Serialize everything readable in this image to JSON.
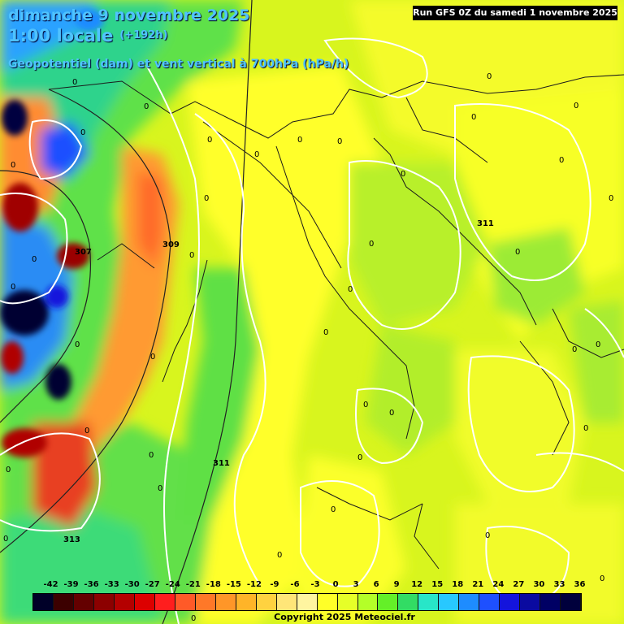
{
  "header": {
    "date_line": "dimanche 9 novembre 2025",
    "time_line": "1:00 locale",
    "lead_time": "(+192h)",
    "field_line": "Geopotentiel (dam) et vent vertical à 700hPa (hPa/h)"
  },
  "run_info": "Run GFS 0Z du samedi 1 novembre 2025",
  "copyright": "Copyright 2025 Meteociel.fr",
  "legend": {
    "ticks": [
      "-42",
      "-39",
      "-36",
      "-33",
      "-30",
      "-27",
      "-24",
      "-21",
      "-18",
      "-15",
      "-12",
      "-9",
      "-6",
      "-3",
      "0",
      "3",
      "6",
      "9",
      "12",
      "15",
      "18",
      "21",
      "24",
      "27",
      "30",
      "33",
      "36"
    ],
    "colors": [
      "#000028",
      "#3c0000",
      "#640000",
      "#8c0000",
      "#b40000",
      "#dc0000",
      "#ff1e1e",
      "#ff5a28",
      "#ff7828",
      "#ff9628",
      "#ffb428",
      "#ffd240",
      "#ffe678",
      "#fff5a0",
      "#ffff28",
      "#e6ff28",
      "#b4ff28",
      "#64f028",
      "#32dc64",
      "#28e6c8",
      "#28c8ff",
      "#1e8cff",
      "#1e50ff",
      "#1414dc",
      "#0a0aa0",
      "#000064",
      "#00003c"
    ]
  },
  "map": {
    "geopotential_labels": [
      "307",
      "309",
      "311",
      "311",
      "313"
    ],
    "zero_labels": [
      "0",
      "0",
      "0",
      "0",
      "0",
      "0",
      "0",
      "0",
      "0",
      "0",
      "0",
      "0",
      "0",
      "0",
      "0",
      "0",
      "0",
      "0",
      "0",
      "0",
      "0",
      "0",
      "0",
      "0",
      "0",
      "0",
      "0",
      "0",
      "0",
      "0",
      "0",
      "0",
      "0",
      "0",
      "0",
      "0",
      "0",
      "0",
      "0",
      "0"
    ]
  }
}
